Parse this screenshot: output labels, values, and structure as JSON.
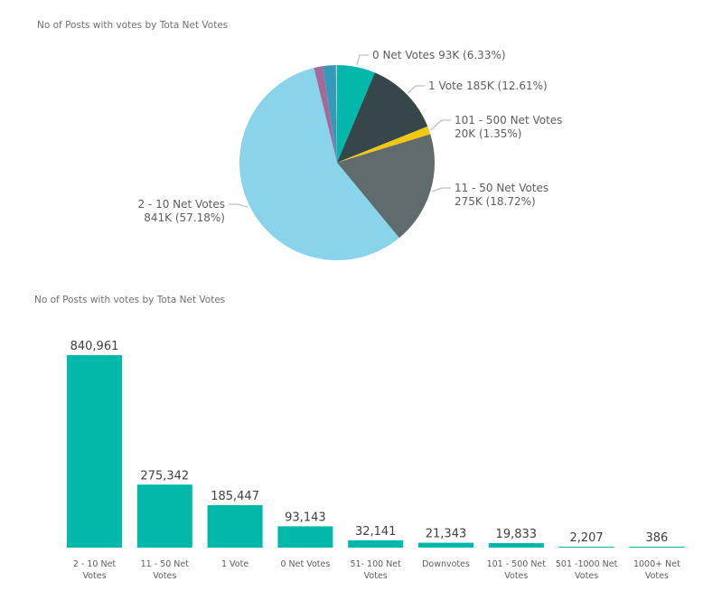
{
  "chart_data": [
    {
      "type": "pie",
      "title": "No of Posts with votes by Tota Net Votes",
      "slices": [
        {
          "name": "0 Net Votes",
          "value": 93143,
          "color": "#01b8aa",
          "label_lines": [
            "0 Net Votes 93K (6.33%)"
          ]
        },
        {
          "name": "1 Vote",
          "value": 185447,
          "color": "#374649",
          "label_lines": [
            "1 Vote 185K (12.61%)"
          ]
        },
        {
          "name": "101 - 500 Net Votes",
          "value": 19833,
          "color": "#f2c80f",
          "label_lines": [
            "101 - 500 Net Votes",
            "20K (1.35%)"
          ]
        },
        {
          "name": "11 - 50 Net Votes",
          "value": 275342,
          "color": "#5f6b6d",
          "label_lines": [
            "11 - 50 Net Votes",
            "275K (18.72%)"
          ]
        },
        {
          "name": "2 - 10 Net Votes",
          "value": 840961,
          "color": "#8ad4eb",
          "label_lines": [
            "2 - 10 Net Votes",
            "841K (57.18%)"
          ]
        },
        {
          "name": "Downvotes",
          "value": 21343,
          "color": "#a66999",
          "label_lines": []
        },
        {
          "name": "51- 100 Net Votes",
          "value": 32141,
          "color": "#3599b8",
          "label_lines": []
        },
        {
          "name": "501 -1000 Net Votes",
          "value": 2207,
          "color": "#dfbfbf",
          "label_lines": []
        },
        {
          "name": "1000+ Net Votes",
          "value": 386,
          "color": "#4ac5bb",
          "label_lines": []
        }
      ]
    },
    {
      "type": "bar",
      "title": "No of Posts with votes by Tota Net Votes",
      "color": "#01b8aa",
      "categories": [
        [
          "2 - 10 Net",
          "Votes"
        ],
        [
          "11 - 50 Net",
          "Votes"
        ],
        [
          "1 Vote"
        ],
        [
          "0 Net Votes"
        ],
        [
          "51- 100 Net",
          "Votes"
        ],
        [
          "Downvotes"
        ],
        [
          "101 - 500 Net",
          "Votes"
        ],
        [
          "501 -1000 Net",
          "Votes"
        ],
        [
          "1000+ Net",
          "Votes"
        ]
      ],
      "values": [
        840961,
        275342,
        185447,
        93143,
        32141,
        21343,
        19833,
        2207,
        386
      ],
      "value_labels": [
        "840,961",
        "275,342",
        "185,447",
        "93,143",
        "32,141",
        "21,343",
        "19,833",
        "2,207",
        "386"
      ],
      "ylim": [
        0,
        840961
      ]
    }
  ]
}
